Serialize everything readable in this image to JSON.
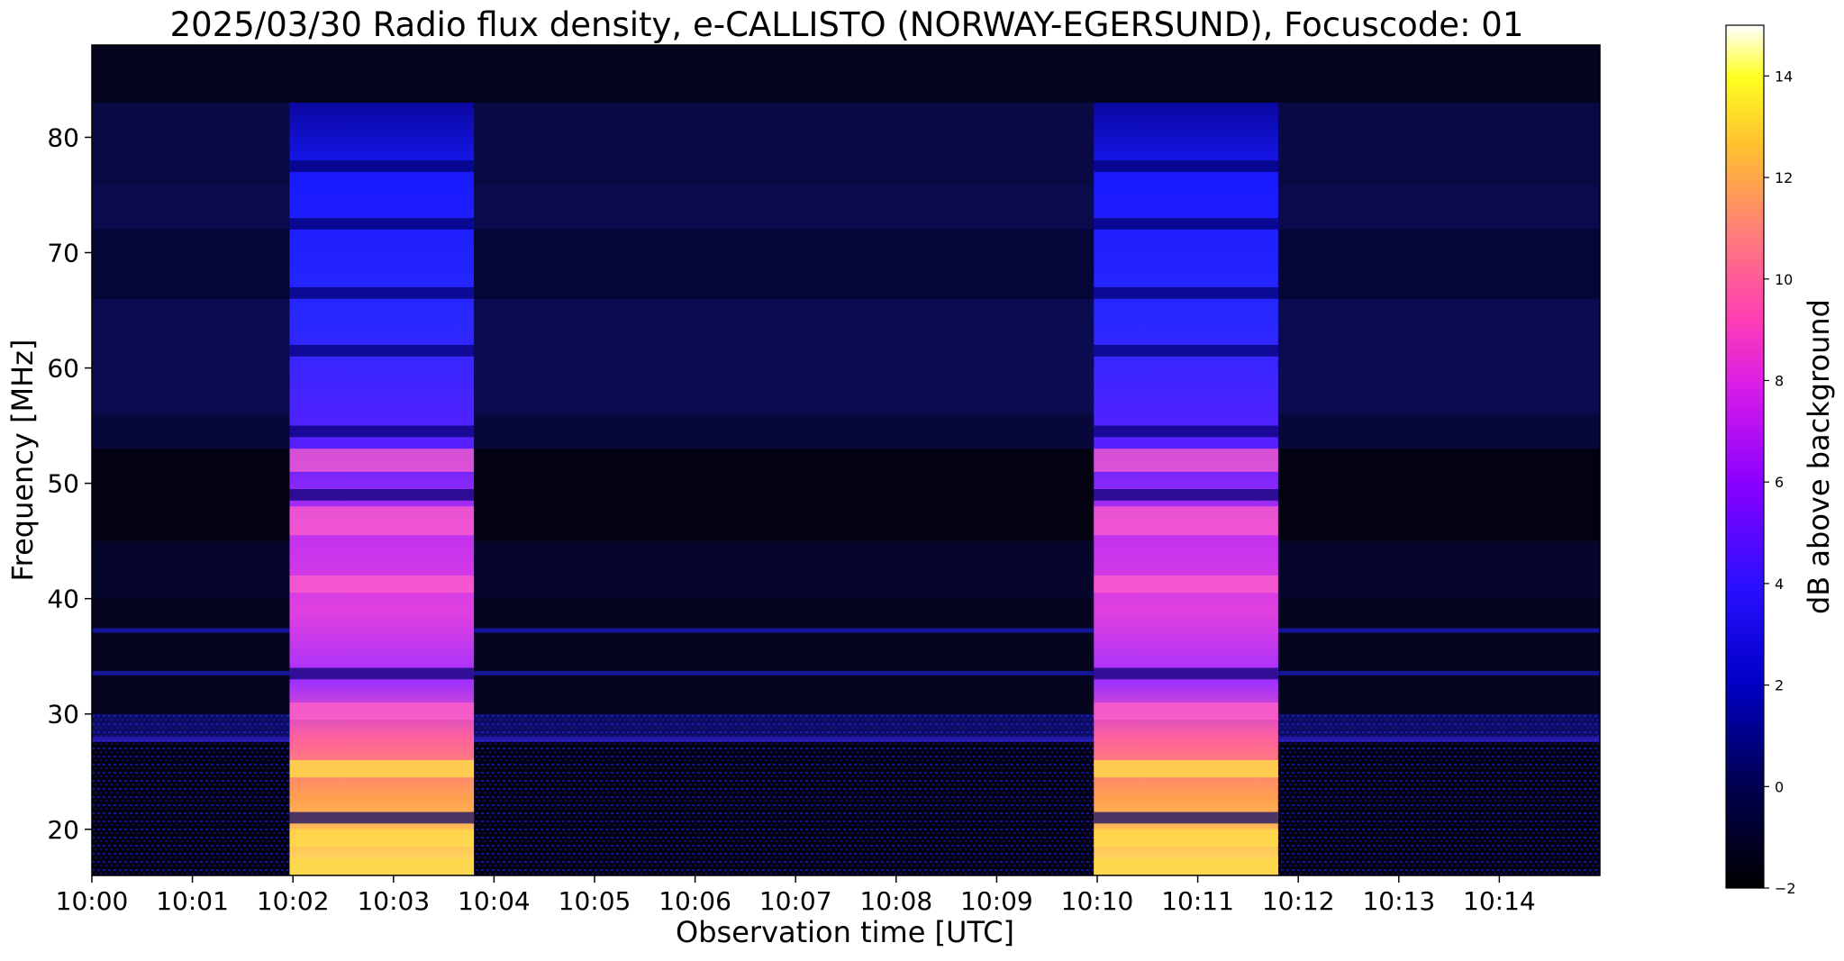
{
  "chart_data": {
    "type": "heatmap",
    "title": "2025/03/30  Radio flux density, e-CALLISTO (NORWAY-EGERSUND), Focuscode: 01",
    "xlabel": "Observation time [UTC]",
    "ylabel": "Frequency [MHz]",
    "colorbar_label": "dB above background",
    "x_ticks": [
      "10:00",
      "10:01",
      "10:02",
      "10:03",
      "10:04",
      "10:05",
      "10:06",
      "10:07",
      "10:08",
      "10:09",
      "10:10",
      "10:11",
      "10:12",
      "10:13",
      "10:14"
    ],
    "x_range": [
      "10:00:00",
      "10:15:00"
    ],
    "y_ticks": [
      "20",
      "30",
      "40",
      "50",
      "60",
      "70",
      "80"
    ],
    "y_range": [
      16,
      88
    ],
    "colorbar_ticks": [
      "14",
      "12",
      "10",
      "8",
      "6",
      "4",
      "2",
      "0",
      "−2"
    ],
    "colorbar_range": [
      -2,
      15
    ],
    "colormap": [
      "#000000",
      "#0000c8",
      "#5a00ff",
      "#a000e0",
      "#ff2dbb",
      "#ff6e80",
      "#ffb040",
      "#ffff00",
      "#ffffff"
    ],
    "features": [
      {
        "kind": "calibration-block",
        "start": "10:01:58",
        "end": "10:03:48",
        "freq_range": [
          16,
          83
        ]
      },
      {
        "kind": "calibration-block",
        "start": "10:09:58",
        "end": "10:11:48",
        "freq_range": [
          16,
          83
        ]
      }
    ],
    "grid": false
  }
}
